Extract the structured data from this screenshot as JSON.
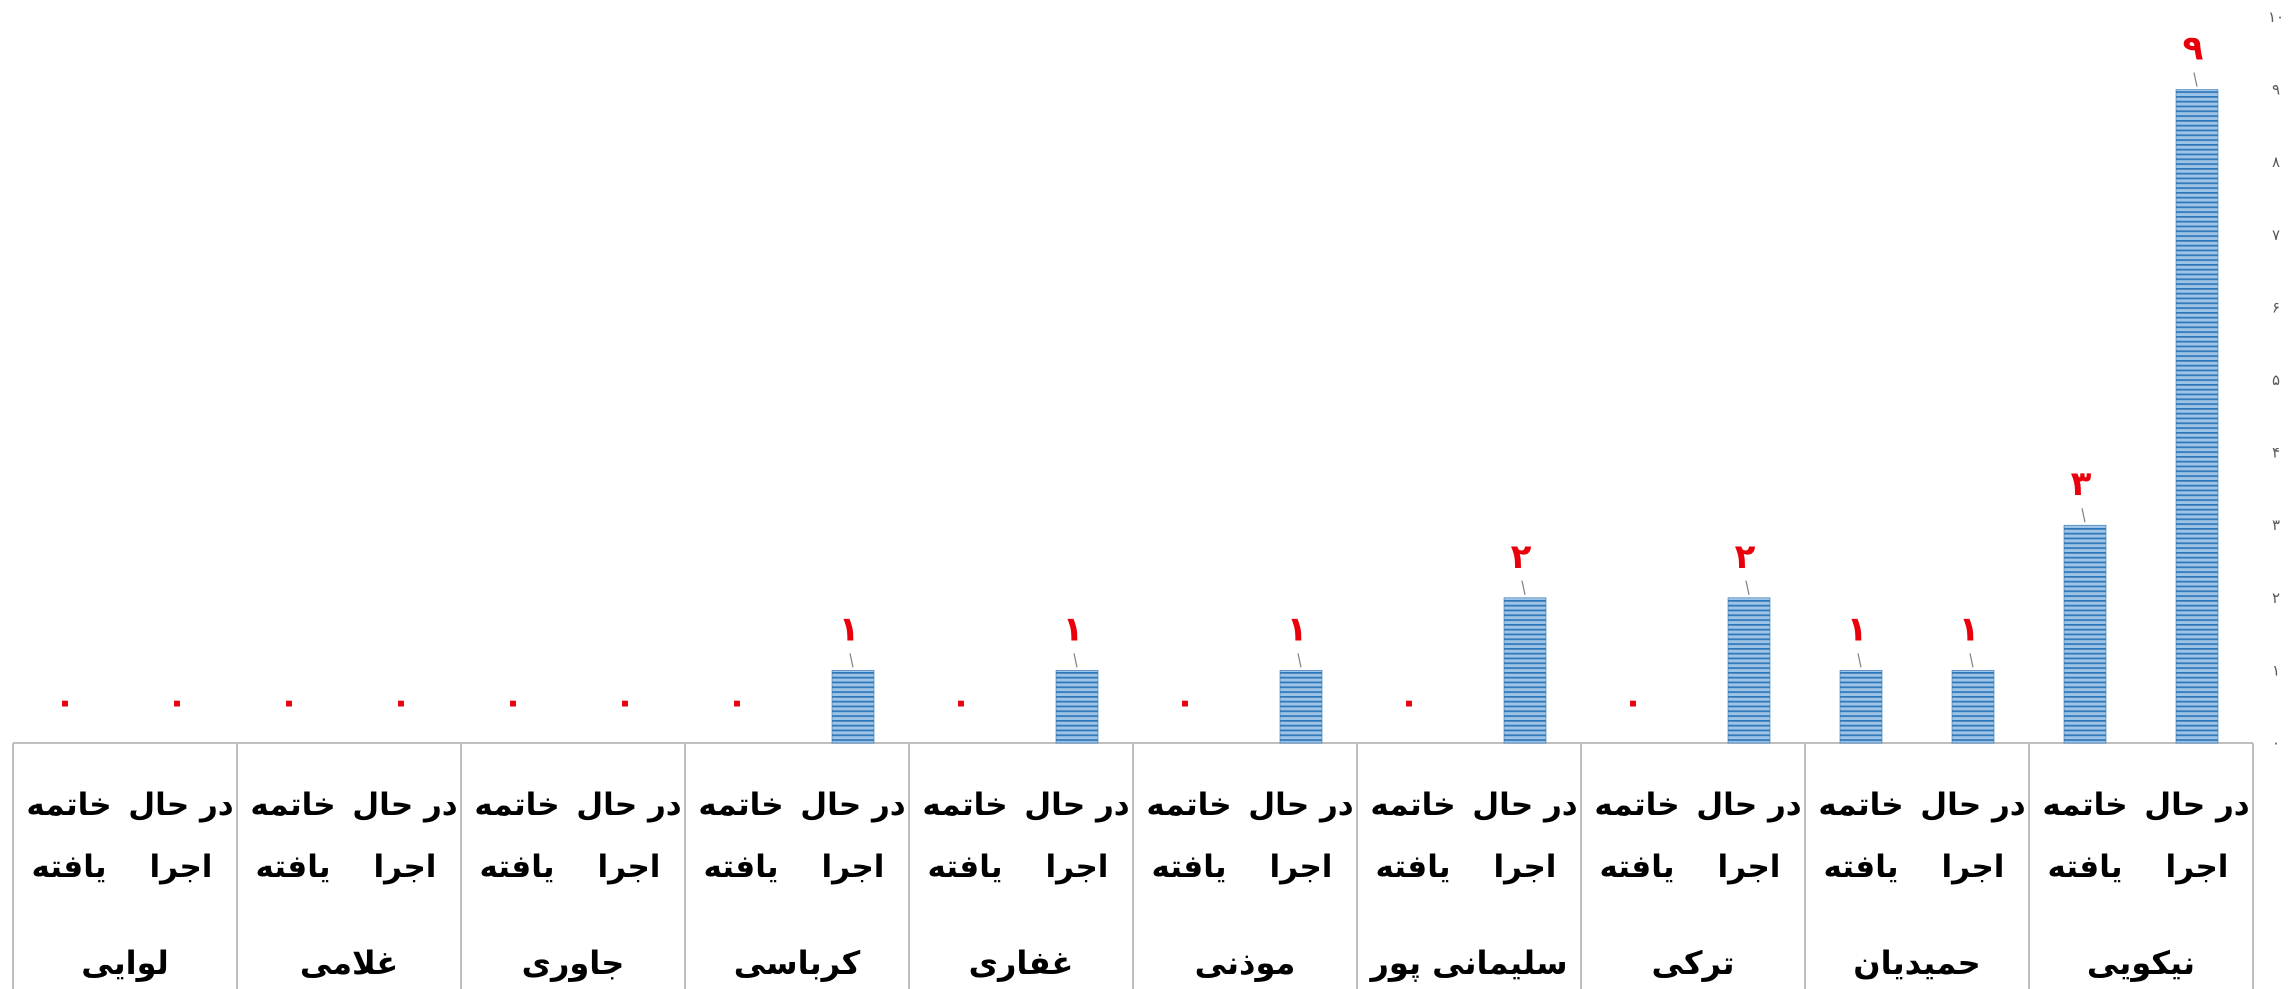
{
  "chart_data": {
    "type": "bar",
    "y_ticks": [
      "۰",
      "۱",
      "۲",
      "۳",
      "۴",
      "۵",
      "۶",
      "۷",
      "۸",
      "۹",
      "۱۰"
    ],
    "ylim": [
      0,
      10
    ],
    "groups": [
      {
        "name": "نیکویی",
        "bars": [
          {
            "label_line1": "در حال",
            "label_line2": "اجرا",
            "value": 9,
            "value_label": "۹"
          },
          {
            "label_line1": "خاتمه",
            "label_line2": "یافته",
            "value": 3,
            "value_label": "۳"
          }
        ]
      },
      {
        "name": "حمیدیان",
        "bars": [
          {
            "label_line1": "در حال",
            "label_line2": "اجرا",
            "value": 1,
            "value_label": "۱"
          },
          {
            "label_line1": "خاتمه",
            "label_line2": "یافته",
            "value": 1,
            "value_label": "۱"
          }
        ]
      },
      {
        "name": "ترکی",
        "bars": [
          {
            "label_line1": "در حال",
            "label_line2": "اجرا",
            "value": 2,
            "value_label": "۲"
          },
          {
            "label_line1": "خاتمه",
            "label_line2": "یافته",
            "value": 0,
            "value_label": "۰"
          }
        ]
      },
      {
        "name": "سلیمانی پور",
        "bars": [
          {
            "label_line1": "در حال",
            "label_line2": "اجرا",
            "value": 2,
            "value_label": "۲"
          },
          {
            "label_line1": "خاتمه",
            "label_line2": "یافته",
            "value": 0,
            "value_label": "۰"
          }
        ]
      },
      {
        "name": "موذنی",
        "bars": [
          {
            "label_line1": "در حال",
            "label_line2": "اجرا",
            "value": 1,
            "value_label": "۱"
          },
          {
            "label_line1": "خاتمه",
            "label_line2": "یافته",
            "value": 0,
            "value_label": "۰"
          }
        ]
      },
      {
        "name": "غفاری",
        "bars": [
          {
            "label_line1": "در حال",
            "label_line2": "اجرا",
            "value": 1,
            "value_label": "۱"
          },
          {
            "label_line1": "خاتمه",
            "label_line2": "یافته",
            "value": 0,
            "value_label": "۰"
          }
        ]
      },
      {
        "name": "کرباسی",
        "bars": [
          {
            "label_line1": "در حال",
            "label_line2": "اجرا",
            "value": 1,
            "value_label": "۱"
          },
          {
            "label_line1": "خاتمه",
            "label_line2": "یافته",
            "value": 0,
            "value_label": "۰"
          }
        ]
      },
      {
        "name": "جاوری",
        "bars": [
          {
            "label_line1": "در حال",
            "label_line2": "اجرا",
            "value": 0,
            "value_label": "۰"
          },
          {
            "label_line1": "خاتمه",
            "label_line2": "یافته",
            "value": 0,
            "value_label": "۰"
          }
        ]
      },
      {
        "name": "غلامی",
        "bars": [
          {
            "label_line1": "در حال",
            "label_line2": "اجرا",
            "value": 0,
            "value_label": "۰"
          },
          {
            "label_line1": "خاتمه",
            "label_line2": "یافته",
            "value": 0,
            "value_label": "۰"
          }
        ]
      },
      {
        "name": "لوایی",
        "bars": [
          {
            "label_line1": "در حال",
            "label_line2": "اجرا",
            "value": 0,
            "value_label": "۰"
          },
          {
            "label_line1": "خاتمه",
            "label_line2": "یافته",
            "value": 0,
            "value_label": "۰"
          }
        ]
      }
    ],
    "colors": {
      "bar_fill": "#9dc3e6",
      "bar_stripe": "#2e75b6",
      "data_label": "#e8000b",
      "axis_line": "#bfbfbf",
      "tick_text": "#595959"
    },
    "grid": false,
    "legend": "none",
    "title": "",
    "xlabel": "",
    "ylabel": ""
  }
}
